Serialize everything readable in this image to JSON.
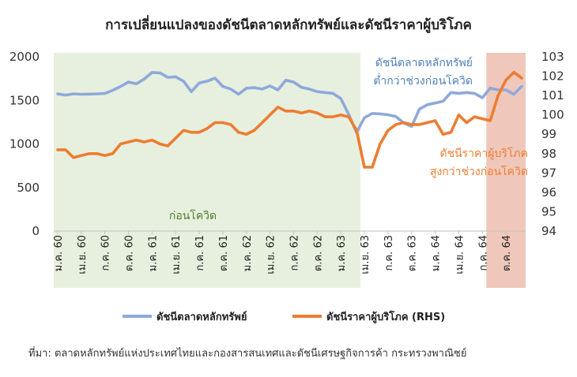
{
  "chart_data": {
    "type": "line",
    "title": "การเปลี่ยนแปลงของดัชนีตลาดหลักทรัพย์และดัชนีราคาผู้บริโภค",
    "source": "ที่มา: ตลาดหลักทรัพย์แห่งประเทศไทยและกองสารสนเทศและดัชนีเศรษฐกิจการค้า กระทรวงพาณิชย์",
    "left_axis": {
      "ylim": [
        0,
        2000
      ],
      "ticks": [
        "0",
        "500",
        "1000",
        "1500",
        "2000"
      ]
    },
    "right_axis": {
      "ylim": [
        94,
        103
      ],
      "ticks": [
        "94",
        "95",
        "96",
        "97",
        "98",
        "99",
        "100",
        "101",
        "102",
        "103"
      ]
    },
    "x_tick_labels": [
      "ม.ค. 60",
      "เม.ย. 60",
      "ก.ค. 60",
      "ต.ค. 60",
      "ม.ค. 61",
      "เม.ย. 61",
      "ก.ค. 61",
      "ต.ค. 61",
      "ม.ค. 62",
      "เม.ย. 62",
      "ก.ค. 62",
      "ต.ค. 62",
      "ม.ค. 63",
      "เม.ย. 63",
      "ก.ค. 63",
      "ต.ค. 63",
      "ม.ค. 64",
      "เม.ย. 64",
      "ก.ค. 64",
      "ต.ค. 64"
    ],
    "series": [
      {
        "name": "ดัชนีตลาดหลักทรัพย์",
        "axis": "left",
        "color": "#8EA9DB",
        "values": [
          1575,
          1560,
          1575,
          1570,
          1572,
          1575,
          1580,
          1615,
          1660,
          1710,
          1690,
          1745,
          1820,
          1815,
          1765,
          1770,
          1720,
          1600,
          1700,
          1720,
          1755,
          1660,
          1630,
          1570,
          1640,
          1645,
          1630,
          1665,
          1620,
          1730,
          1710,
          1650,
          1630,
          1600,
          1590,
          1580,
          1520,
          1340,
          1130,
          1300,
          1350,
          1345,
          1335,
          1315,
          1240,
          1200,
          1400,
          1450,
          1470,
          1490,
          1590,
          1580,
          1590,
          1580,
          1530,
          1640,
          1620,
          1620,
          1570,
          1660
        ]
      },
      {
        "name": "ดัชนีราคาผู้บริโภค (RHS)",
        "axis": "right",
        "color": "#ED7D31",
        "values": [
          98.2,
          98.2,
          97.8,
          97.9,
          98.0,
          98.0,
          97.9,
          98.0,
          98.5,
          98.6,
          98.7,
          98.6,
          98.7,
          98.5,
          98.4,
          98.8,
          99.2,
          99.1,
          99.1,
          99.3,
          99.6,
          99.6,
          99.5,
          99.1,
          99.0,
          99.2,
          99.6,
          100.0,
          100.4,
          100.2,
          100.2,
          100.1,
          100.2,
          100.1,
          99.9,
          99.9,
          100.0,
          99.9,
          99.2,
          97.3,
          97.3,
          98.5,
          99.2,
          99.5,
          99.6,
          99.5,
          99.5,
          99.6,
          99.7,
          99.0,
          99.1,
          100.0,
          99.6,
          99.9,
          99.8,
          99.7,
          101.0,
          101.8,
          102.2,
          101.9
        ]
      }
    ],
    "annotations": [
      {
        "text": "ดัชนีตลาดหลักทรัพย์\nต่ำกว่าช่วงก่อนโควิด",
        "color": "#4F81BD"
      },
      {
        "text": "ดัชนีราคาผู้บริโภค\nสูงกว่าช่วงก่อนโควิด",
        "color": "#ED7D31"
      },
      {
        "text": "ก่อนโควิด",
        "color": "#4E7D2A"
      }
    ],
    "shaded_regions": [
      {
        "label": "pre-covid",
        "from_index": 0,
        "to_index": 38,
        "color": "#E7F0DF"
      },
      {
        "label": "recent",
        "from_index": 55,
        "to_index": 59,
        "color": "#EFC8BB"
      }
    ],
    "legend_position": "bottom",
    "grid": false
  }
}
